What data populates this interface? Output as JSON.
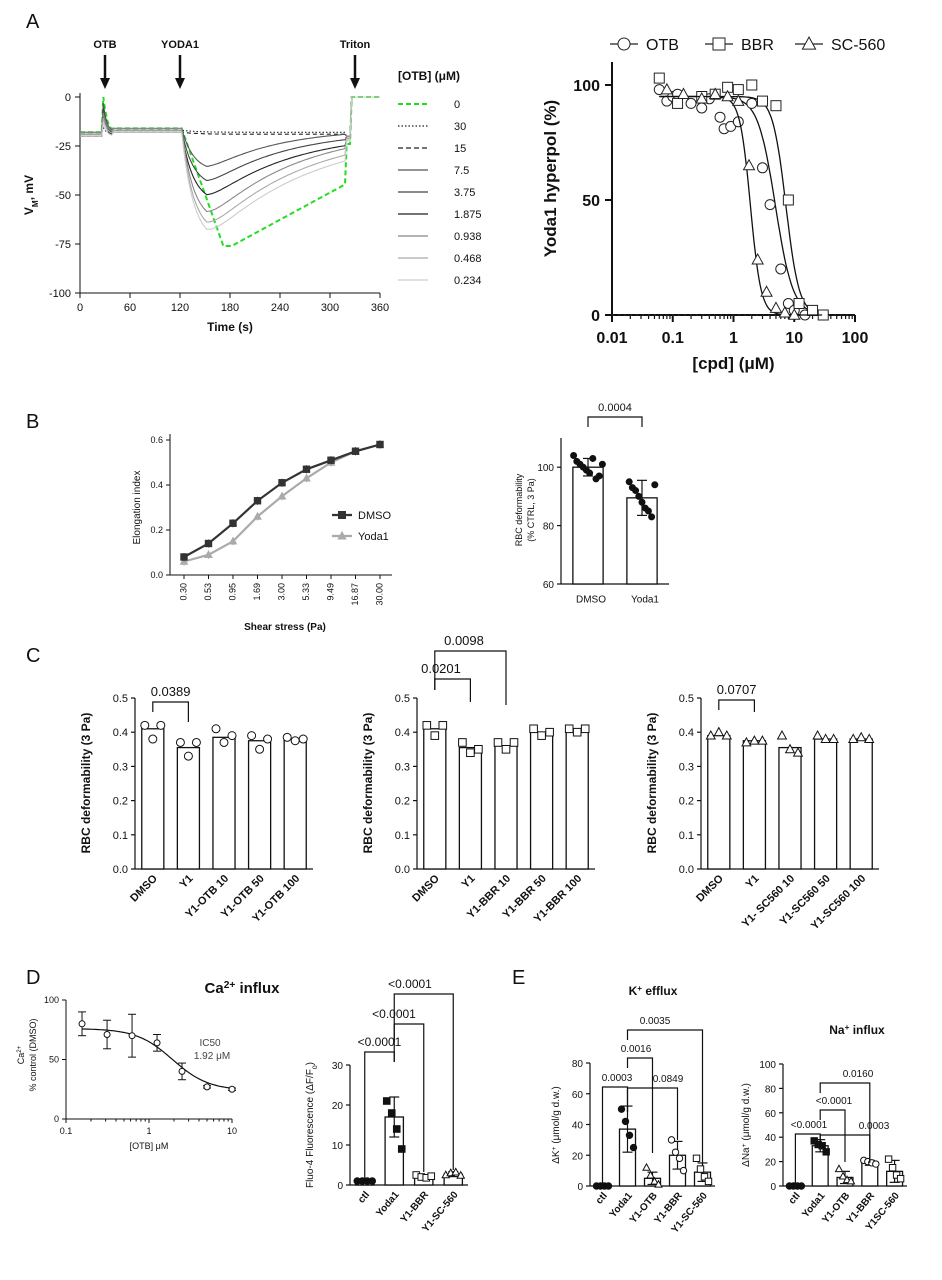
{
  "panel_labels": {
    "A": "A",
    "B": "B",
    "C": "C",
    "D": "D",
    "E": "E"
  },
  "chart_data": [
    {
      "id": "A_trace",
      "type": "line",
      "xlabel": "Time (s)",
      "ylabel_main": "V",
      "ylabel_sub": "M",
      "ylabel_tail": ", mV",
      "xlim": [
        0,
        360
      ],
      "ylim": [
        -100,
        0
      ],
      "xticks": [
        "0",
        "60",
        "120",
        "180",
        "240",
        "300",
        "360"
      ],
      "yticks": [
        "0",
        "-25",
        "-50",
        "-75",
        "-100"
      ],
      "annotations": [
        {
          "label": "OTB",
          "x": 30
        },
        {
          "label": "YODA1",
          "x": 120
        },
        {
          "label": "Triton",
          "x": 330
        }
      ],
      "legend_title": "[OTB] (μM)",
      "series": [
        {
          "name": "0",
          "color": "#22dd22",
          "dash": "dashed",
          "min": -76
        },
        {
          "name": "30",
          "color": "#222222",
          "dash": "dotted",
          "min": -18
        },
        {
          "name": "15",
          "color": "#222222",
          "dash": "dashed",
          "min": -19
        },
        {
          "name": "7.5",
          "color": "#555555",
          "dash": "solid",
          "min": -38
        },
        {
          "name": "3.75",
          "color": "#444444",
          "dash": "solid",
          "min": -46
        },
        {
          "name": "1.875",
          "color": "#222222",
          "dash": "solid",
          "min": -54
        },
        {
          "name": "0.938",
          "color": "#888888",
          "dash": "solid",
          "min": -64
        },
        {
          "name": "0.468",
          "color": "#aaaaaa",
          "dash": "solid",
          "min": -70
        },
        {
          "name": "0.234",
          "color": "#cccccc",
          "dash": "solid",
          "min": -74
        }
      ]
    },
    {
      "id": "A_dose",
      "type": "scatter",
      "xlabel": "[cpd] (μM)",
      "ylabel": "Yoda1 hyperpol  (%)",
      "xscale": "log",
      "xlim": [
        0.01,
        100
      ],
      "ylim": [
        0,
        110
      ],
      "xticks": [
        "0.01",
        "0.1",
        "1",
        "10",
        "100"
      ],
      "yticks": [
        "0",
        "50",
        "100"
      ],
      "legend": "top",
      "series": [
        {
          "name": "OTB",
          "marker": "circle",
          "ic50": 4.9,
          "hill": 3,
          "x": [
            0.06,
            0.08,
            0.1,
            0.12,
            0.2,
            0.3,
            0.4,
            0.6,
            0.7,
            0.9,
            1.2,
            2,
            3,
            4,
            6,
            8,
            10,
            15
          ],
          "y": [
            98,
            93,
            95,
            96,
            92,
            90,
            94,
            86,
            81,
            82,
            84,
            92,
            64,
            48,
            20,
            5,
            2,
            0
          ]
        },
        {
          "name": "BBR",
          "marker": "square",
          "ic50": 7.3,
          "hill": 4,
          "x": [
            0.06,
            0.12,
            0.3,
            0.5,
            0.8,
            1.2,
            2,
            3,
            5,
            8,
            12,
            20,
            30
          ],
          "y": [
            103,
            92,
            95,
            96,
            99,
            98,
            100,
            93,
            91,
            50,
            5,
            2,
            0
          ]
        },
        {
          "name": "SC-560",
          "marker": "triangle",
          "ic50": 1.9,
          "hill": 5,
          "x": [
            0.08,
            0.15,
            0.3,
            0.5,
            0.8,
            1.2,
            1.8,
            2.5,
            3.5,
            5,
            7,
            10
          ],
          "y": [
            98,
            96,
            94,
            96,
            95,
            93,
            65,
            24,
            10,
            3,
            1,
            0
          ]
        }
      ]
    },
    {
      "id": "B_elong",
      "type": "line",
      "xlabel": "Shear stress (Pa)",
      "ylabel": "Elongation index",
      "categories": [
        "0.30",
        "0.53",
        "0.95",
        "1.69",
        "3.00",
        "5.33",
        "9.49",
        "16.87",
        "30.00"
      ],
      "ylim": [
        0,
        0.6
      ],
      "yticks": [
        "0.0",
        "0.2",
        "0.4",
        "0.6"
      ],
      "legend": "right",
      "series": [
        {
          "name": "DMSO",
          "color": "#333333",
          "marker": "square",
          "values": [
            0.08,
            0.14,
            0.23,
            0.33,
            0.41,
            0.47,
            0.51,
            0.55,
            0.58
          ]
        },
        {
          "name": "Yoda1",
          "color": "#aaaaaa",
          "marker": "triangle",
          "values": [
            0.06,
            0.09,
            0.15,
            0.26,
            0.35,
            0.43,
            0.5,
            0.55,
            0.58
          ]
        }
      ]
    },
    {
      "id": "B_bar",
      "type": "bar",
      "ylabel_line1": "RBC deformability",
      "ylabel_line2": "(% CTRL, 3 Pa)",
      "categories": [
        "DMSO",
        "Yoda1"
      ],
      "values": [
        100,
        89.5
      ],
      "errors": [
        3,
        6
      ],
      "ylim": [
        60,
        110
      ],
      "yticks": [
        "60",
        "80",
        "100"
      ],
      "points": [
        [
          104,
          102,
          101,
          100,
          99,
          98,
          103,
          96,
          97,
          101
        ],
        [
          95,
          93,
          92,
          90,
          88,
          86,
          85,
          83,
          94
        ]
      ],
      "comparisons": [
        {
          "label": "0.0004",
          "from": 0,
          "to": 1
        }
      ]
    },
    {
      "id": "C_otb",
      "type": "bar",
      "ylabel": "RBC deformability (3 Pa)",
      "categories": [
        "DMSO",
        "Y1",
        "Y1-OTB 10",
        "Y1-OTB 50",
        "Y1-OTB 100"
      ],
      "values": [
        0.41,
        0.355,
        0.385,
        0.375,
        0.38
      ],
      "ylim": [
        0,
        0.5
      ],
      "yticks": [
        "0.0",
        "0.1",
        "0.2",
        "0.3",
        "0.4",
        "0.5"
      ],
      "points": [
        [
          0.42,
          0.38,
          0.42
        ],
        [
          0.37,
          0.33,
          0.37
        ],
        [
          0.41,
          0.37,
          0.39
        ],
        [
          0.39,
          0.35,
          0.38
        ],
        [
          0.385,
          0.375,
          0.38
        ]
      ],
      "comparisons": [
        {
          "label": "0.0389",
          "from": 0,
          "to": 1
        }
      ]
    },
    {
      "id": "C_bbr",
      "type": "bar",
      "ylabel": "RBC deformability (3 Pa)",
      "categories": [
        "DMSO",
        "Y1",
        "Y1-BBR 10",
        "Y1-BBR 50",
        "Y1-BBR 100"
      ],
      "values": [
        0.41,
        0.355,
        0.36,
        0.4,
        0.405
      ],
      "ylim": [
        0,
        0.5
      ],
      "yticks": [
        "0.0",
        "0.1",
        "0.2",
        "0.3",
        "0.4",
        "0.5"
      ],
      "points": [
        [
          0.42,
          0.39,
          0.42
        ],
        [
          0.37,
          0.34,
          0.35
        ],
        [
          0.37,
          0.35,
          0.37
        ],
        [
          0.41,
          0.39,
          0.4
        ],
        [
          0.41,
          0.4,
          0.41
        ]
      ],
      "comparisons": [
        {
          "label": "0.0201",
          "from": 0,
          "to": 1
        },
        {
          "label": "0.0098",
          "from": 0,
          "to": 2
        }
      ]
    },
    {
      "id": "C_sc560",
      "type": "bar",
      "ylabel": "RBC deformability (3 Pa)",
      "categories": [
        "DMSO",
        "Y1",
        "Y1- SC560 10",
        "Y1-SC560 50",
        "Y1-SC560 100"
      ],
      "values": [
        0.39,
        0.375,
        0.355,
        0.38,
        0.38
      ],
      "ylim": [
        0,
        0.5
      ],
      "yticks": [
        "0.0",
        "0.1",
        "0.2",
        "0.3",
        "0.4",
        "0.5"
      ],
      "points": [
        [
          0.39,
          0.4,
          0.39
        ],
        [
          0.37,
          0.375,
          0.375
        ],
        [
          0.39,
          0.35,
          0.34
        ],
        [
          0.39,
          0.38,
          0.38
        ],
        [
          0.38,
          0.385,
          0.38
        ]
      ],
      "comparisons": [
        {
          "label": "0.0707",
          "from": 0,
          "to": 1
        }
      ]
    },
    {
      "id": "D_curve",
      "type": "line",
      "title_prefix": "Ca",
      "title_sup": "2+",
      "title_suffix": " influx",
      "xlabel": "[OTB] μM",
      "ylabel_line1_prefix": "Ca",
      "ylabel_line1_sup": "2+",
      "ylabel_line2": "% control (DMSO)",
      "xscale": "log",
      "xlim": [
        0.1,
        10
      ],
      "ylim": [
        0,
        100
      ],
      "xticks": [
        "0.1",
        "1",
        "10"
      ],
      "yticks": [
        "0",
        "50",
        "100"
      ],
      "annotation_line1": "IC50",
      "annotation_line2": "1.92 μM",
      "x": [
        0.156,
        0.3125,
        0.625,
        1.25,
        2.5,
        5,
        10
      ],
      "y": [
        80,
        71,
        70,
        64,
        40,
        27,
        25
      ],
      "errors": [
        10,
        12,
        18,
        7,
        7,
        1,
        1
      ],
      "fit": {
        "top": 76,
        "bottom": 24,
        "ic50": 1.92,
        "hill": 2
      }
    },
    {
      "id": "D_bar",
      "type": "bar",
      "ylabel_prefix": "Fluo-4 Fluorescence (ΔF/F",
      "ylabel_sub": "0",
      "ylabel_suffix": ")",
      "categories": [
        "ctl",
        "Yoda1",
        "Y1-BBR",
        "Y1-SC-560"
      ],
      "values": [
        1,
        17,
        2,
        2.7
      ],
      "errors": [
        0.2,
        5,
        0.5,
        0.6
      ],
      "ylim": [
        0,
        30
      ],
      "yticks": [
        "0",
        "10",
        "20",
        "30"
      ],
      "points": [
        [
          1,
          1,
          1,
          1
        ],
        [
          21,
          18,
          14,
          9
        ],
        [
          2.5,
          2,
          1.8,
          2.2
        ],
        [
          2.5,
          3,
          3.2,
          2.4
        ]
      ],
      "comparisons": [
        {
          "label": "<0.0001",
          "from": 0,
          "to": 1
        },
        {
          "label": "<0.0001",
          "from": 1,
          "to": 2
        },
        {
          "label": "<0.0001",
          "from": 1,
          "to": 3
        }
      ]
    },
    {
      "id": "E_k",
      "type": "bar",
      "title_prefix": "K",
      "title_sup": "+",
      "title_suffix": " efflux",
      "ylabel_prefix": "ΔK",
      "ylabel_sup": "+",
      "ylabel_suffix": " (μmol/g d.w.)",
      "categories": [
        "ctl",
        "Yoda1",
        "Y1-OTB",
        "Y1-BBR",
        "Y1-SC-560"
      ],
      "values": [
        0,
        37,
        5,
        20,
        9
      ],
      "errors": [
        0.5,
        15,
        4,
        9,
        6
      ],
      "ylim": [
        0,
        80
      ],
      "yticks": [
        "0",
        "20",
        "40",
        "60",
        "80"
      ],
      "points": [
        [
          0,
          0,
          0,
          0
        ],
        [
          50,
          42,
          33,
          25
        ],
        [
          12,
          7,
          3,
          1
        ],
        [
          30,
          22,
          18,
          10
        ],
        [
          18,
          11,
          6,
          3
        ]
      ],
      "comparisons": [
        {
          "label": "0.0003",
          "from": 0,
          "to": 1
        },
        {
          "label": "0.0849",
          "from": 1,
          "to": 3
        },
        {
          "label": "0.0016",
          "from": 1,
          "to": 2
        },
        {
          "label": "0.0035",
          "from": 1,
          "to": 4
        }
      ]
    },
    {
      "id": "E_na",
      "type": "bar",
      "title_prefix": "Na",
      "title_sup": "+",
      "title_suffix": " influx",
      "ylabel_prefix": "ΔNa",
      "ylabel_sup": "+",
      "ylabel_suffix": " (μmol/g d.w.)",
      "categories": [
        "ctl",
        "Yoda1",
        "Y1-OTB",
        "Y1-BBR",
        "Y1SC-560"
      ],
      "values": [
        0,
        33,
        7,
        19,
        12
      ],
      "errors": [
        0.5,
        5,
        5,
        2,
        9
      ],
      "ylim": [
        0,
        100
      ],
      "yticks": [
        "0",
        "20",
        "40",
        "60",
        "80",
        "100"
      ],
      "points": [
        [
          0,
          0,
          0,
          0
        ],
        [
          37,
          34,
          33,
          28
        ],
        [
          14,
          8,
          5,
          4
        ],
        [
          21,
          20,
          19,
          18
        ],
        [
          22,
          15,
          9,
          6
        ]
      ],
      "comparisons": [
        {
          "label": "<0.0001",
          "from": 0,
          "to": 1
        },
        {
          "label": "0.0003",
          "from": 1,
          "to": 3
        },
        {
          "label": "<0.0001",
          "from": 1,
          "to": 2
        },
        {
          "label": "0.0160",
          "from": 1,
          "to": 3
        }
      ]
    }
  ]
}
